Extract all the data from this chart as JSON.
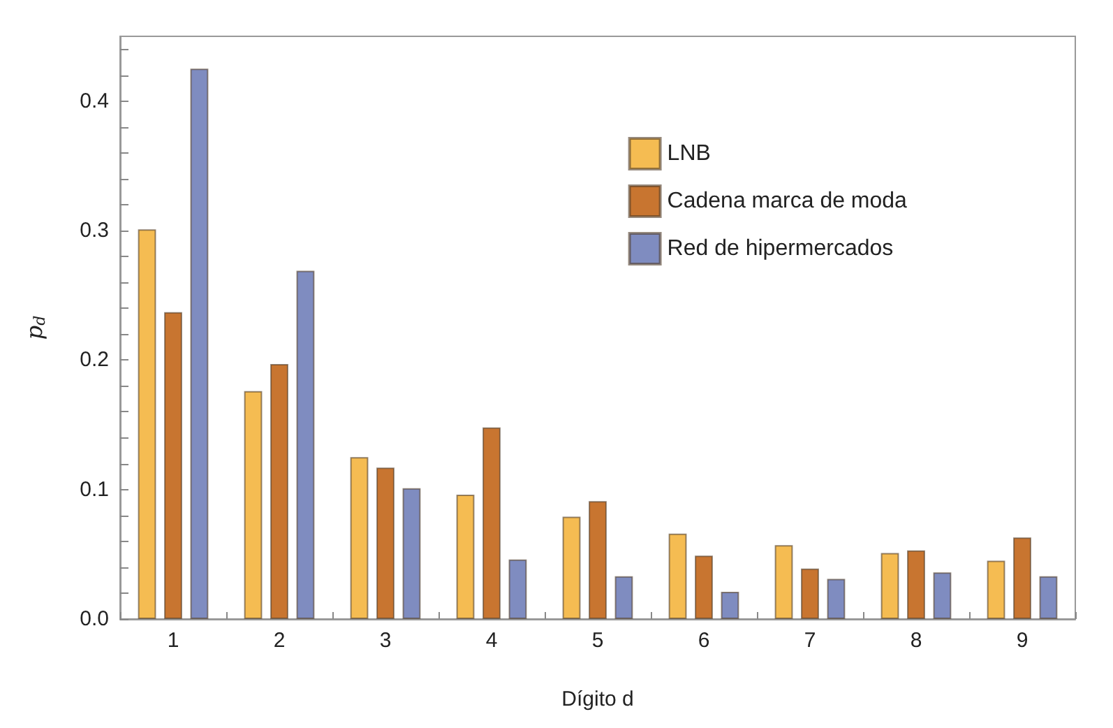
{
  "chart_data": {
    "type": "bar",
    "xlabel": "Dígito d",
    "ylabel": "p$_{d}$",
    "categories": [
      "1",
      "2",
      "3",
      "4",
      "5",
      "6",
      "7",
      "8",
      "9"
    ],
    "series": [
      {
        "name": "LNB",
        "color": "#f5bc52",
        "values": [
          0.301,
          0.176,
          0.125,
          0.096,
          0.079,
          0.066,
          0.057,
          0.051,
          0.045
        ]
      },
      {
        "name": "Cadena marca de moda",
        "color": "#c87530",
        "values": [
          0.237,
          0.197,
          0.117,
          0.148,
          0.091,
          0.049,
          0.039,
          0.053,
          0.063
        ]
      },
      {
        "name": "Red de hipermercados",
        "color": "#7f8cc0",
        "values": [
          0.425,
          0.269,
          0.101,
          0.046,
          0.033,
          0.021,
          0.031,
          0.036,
          0.033
        ]
      }
    ],
    "ylim": [
      0,
      0.45
    ],
    "yticks": [
      {
        "value": 0,
        "label": "0.0"
      },
      {
        "value": 0.02,
        "label": null
      },
      {
        "value": 0.04,
        "label": null
      },
      {
        "value": 0.06,
        "label": null
      },
      {
        "value": 0.08,
        "label": null
      },
      {
        "value": 0.1,
        "label": "0.1"
      },
      {
        "value": 0.12,
        "label": null
      },
      {
        "value": 0.14,
        "label": null
      },
      {
        "value": 0.16,
        "label": null
      },
      {
        "value": 0.18,
        "label": null
      },
      {
        "value": 0.2,
        "label": "0.2"
      },
      {
        "value": 0.22,
        "label": null
      },
      {
        "value": 0.24,
        "label": null
      },
      {
        "value": 0.26,
        "label": null
      },
      {
        "value": 0.28,
        "label": null
      },
      {
        "value": 0.3,
        "label": "0.3"
      },
      {
        "value": 0.32,
        "label": null
      },
      {
        "value": 0.34,
        "label": null
      },
      {
        "value": 0.36,
        "label": null
      },
      {
        "value": 0.38,
        "label": null
      },
      {
        "value": 0.4,
        "label": "0.4"
      },
      {
        "value": 0.42,
        "label": null
      },
      {
        "value": 0.44,
        "label": null
      }
    ],
    "grid": false,
    "legend": "top right"
  }
}
